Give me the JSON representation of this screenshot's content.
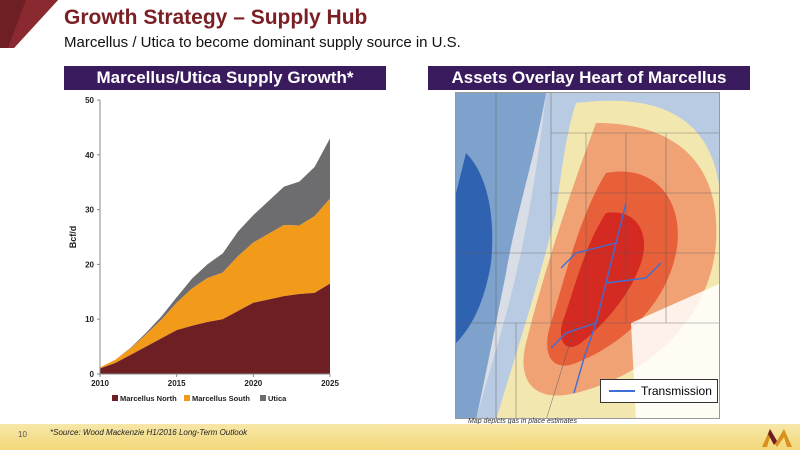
{
  "header": {
    "title": "Growth Strategy – Supply Hub",
    "subtitle": "Marcellus / Utica to become dominant supply source in U.S."
  },
  "left_panel": {
    "banner": "Marcellus/Utica Supply Growth*"
  },
  "right_panel": {
    "banner": "Assets Overlay Heart of Marcellus",
    "legend_label": "Transmission",
    "note": "Map depicts gas in place estimates"
  },
  "footer": {
    "page_number": "10",
    "source": "*Source: Wood Mackenzie H1/2016 Long-Term Outlook"
  },
  "colors": {
    "title": "#7a1f23",
    "banner": "#3a1c5e",
    "marcellus_north": "#6e1f24",
    "marcellus_south": "#f29a1a",
    "utica": "#6d6d70",
    "transmission": "#3d6fd6"
  },
  "chart_data": {
    "type": "area",
    "stacked": true,
    "x": [
      2010,
      2011,
      2012,
      2013,
      2014,
      2015,
      2016,
      2017,
      2018,
      2019,
      2020,
      2021,
      2022,
      2023,
      2024,
      2025
    ],
    "series": [
      {
        "name": "Marcellus North",
        "values": [
          1,
          2,
          3.5,
          5,
          6.5,
          8,
          8.8,
          9.5,
          10,
          11.5,
          13,
          13.6,
          14.2,
          14.6,
          14.8,
          16.5
        ]
      },
      {
        "name": "Marcellus South",
        "values": [
          0.2,
          0.6,
          1.2,
          2.2,
          3.4,
          5,
          6.8,
          8,
          8.5,
          10,
          11,
          12,
          13,
          12.5,
          14,
          15.5
        ]
      },
      {
        "name": "Utica",
        "values": [
          0,
          0,
          0.1,
          0.3,
          0.6,
          1,
          1.8,
          2.5,
          3.5,
          4.5,
          5,
          6,
          7,
          8,
          9,
          11
        ]
      }
    ],
    "ylabel": "Bcf/d",
    "ylim": [
      0,
      50
    ],
    "yticks": [
      0,
      10,
      20,
      30,
      40,
      50
    ],
    "xticks": [
      2010,
      2015,
      2020,
      2025
    ],
    "legend_position": "bottom",
    "grid": false
  }
}
